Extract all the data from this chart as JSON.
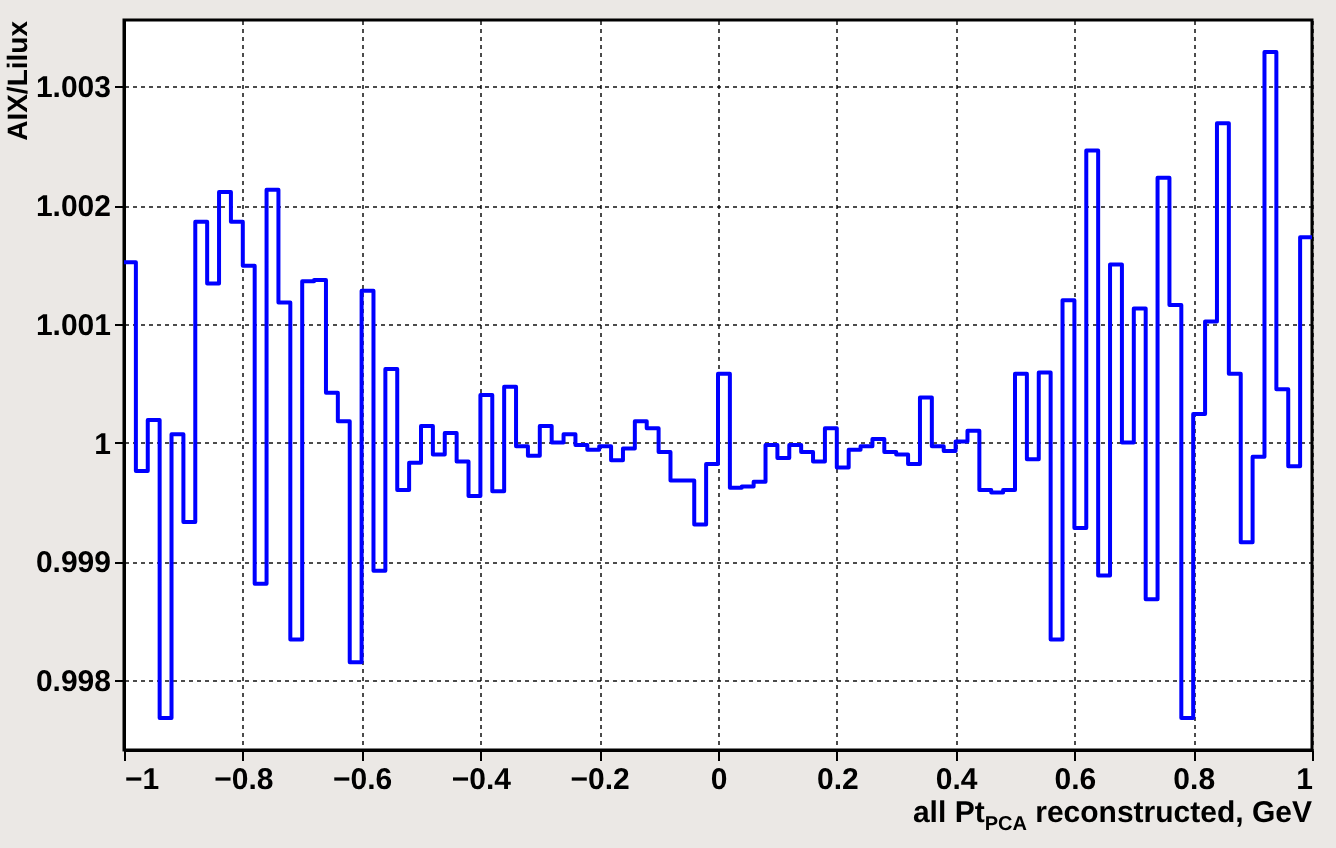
{
  "chart_data": {
    "type": "histogram",
    "xlabel": "all Pt$_{PCA}$ reconstructed, GeV",
    "ylabel": "AIX/Lilux",
    "color": "#0000ff",
    "bins": [
      -1,
      -0.98,
      -0.96,
      -0.94,
      -0.92,
      -0.9,
      -0.88,
      -0.86,
      -0.84,
      -0.82,
      -0.8,
      -0.78,
      -0.76,
      -0.74,
      -0.72,
      -0.7,
      -0.68,
      -0.66,
      -0.64,
      -0.62,
      -0.6,
      -0.58,
      -0.56,
      -0.54,
      -0.52,
      -0.5,
      -0.48,
      -0.46,
      -0.44,
      -0.42,
      -0.4,
      -0.38,
      -0.36,
      -0.34,
      -0.32,
      -0.3,
      -0.28,
      -0.26,
      -0.24,
      -0.22,
      -0.2,
      -0.18,
      -0.16,
      -0.14,
      -0.12,
      -0.1,
      -0.08,
      -0.06,
      -0.04,
      -0.02,
      0,
      0.02,
      0.04,
      0.06,
      0.08,
      0.1,
      0.12,
      0.14,
      0.16,
      0.18,
      0.2,
      0.22,
      0.24,
      0.26,
      0.28,
      0.3,
      0.32,
      0.34,
      0.36,
      0.38,
      0.4,
      0.42,
      0.44,
      0.46,
      0.48,
      0.5,
      0.52,
      0.54,
      0.56,
      0.58,
      0.6,
      0.62,
      0.64,
      0.66,
      0.68,
      0.7,
      0.72,
      0.74,
      0.76,
      0.78,
      0.8,
      0.82,
      0.84,
      0.86,
      0.88,
      0.9,
      0.92,
      0.94,
      0.96,
      0.98,
      1
    ],
    "values": [
      1.00152,
      0.99976,
      1.00019,
      0.99768,
      1.00007,
      0.99933,
      1.00186,
      1.00134,
      1.00211,
      1.00186,
      1.00149,
      0.99881,
      1.00213,
      1.00118,
      0.99834,
      1.00136,
      1.00137,
      1.00042,
      1.00018,
      0.99815,
      1.00128,
      0.99892,
      1.00062,
      0.9996,
      0.99983,
      1.00014,
      0.9999,
      1.00008,
      0.99984,
      0.99955,
      1.0004,
      0.99959,
      1.00047,
      0.99997,
      0.99989,
      1.00014,
      1,
      1.00007,
      0.99998,
      0.99994,
      0.99997,
      0.99985,
      0.99995,
      1.00018,
      1.00012,
      0.99992,
      0.99968,
      0.99968,
      0.99931,
      0.99982,
      1.00058,
      0.99962,
      0.99963,
      0.99967,
      0.99998,
      0.99987,
      0.99998,
      0.99992,
      0.99984,
      1.00012,
      0.99979,
      0.99994,
      0.99997,
      1.00003,
      0.99992,
      0.9999,
      0.99982,
      1.00038,
      0.99997,
      0.99993,
      1.00001,
      1.0001,
      0.9996,
      0.99958,
      0.9996,
      1.00058,
      0.99986,
      1.00059,
      0.99834,
      1.0012,
      0.99928,
      1.00246,
      0.99888,
      1.0015,
      1,
      1.00113,
      0.99868,
      1.00223,
      1.00116,
      0.99768,
      1.00024,
      1.00102,
      1.00269,
      1.00058,
      0.99916,
      0.99988,
      1.00329,
      1.00045,
      0.9998,
      1.00173
    ],
    "xlim": [
      -1,
      1
    ],
    "ylim": [
      0.99741,
      1.00356
    ],
    "xticks": [
      -1,
      -0.8,
      -0.6,
      -0.4,
      -0.2,
      0,
      0.2,
      0.4,
      0.6,
      0.8,
      1
    ],
    "yticks": [
      0.998,
      0.999,
      1,
      1.001,
      1.002,
      1.003
    ],
    "grid": true
  }
}
